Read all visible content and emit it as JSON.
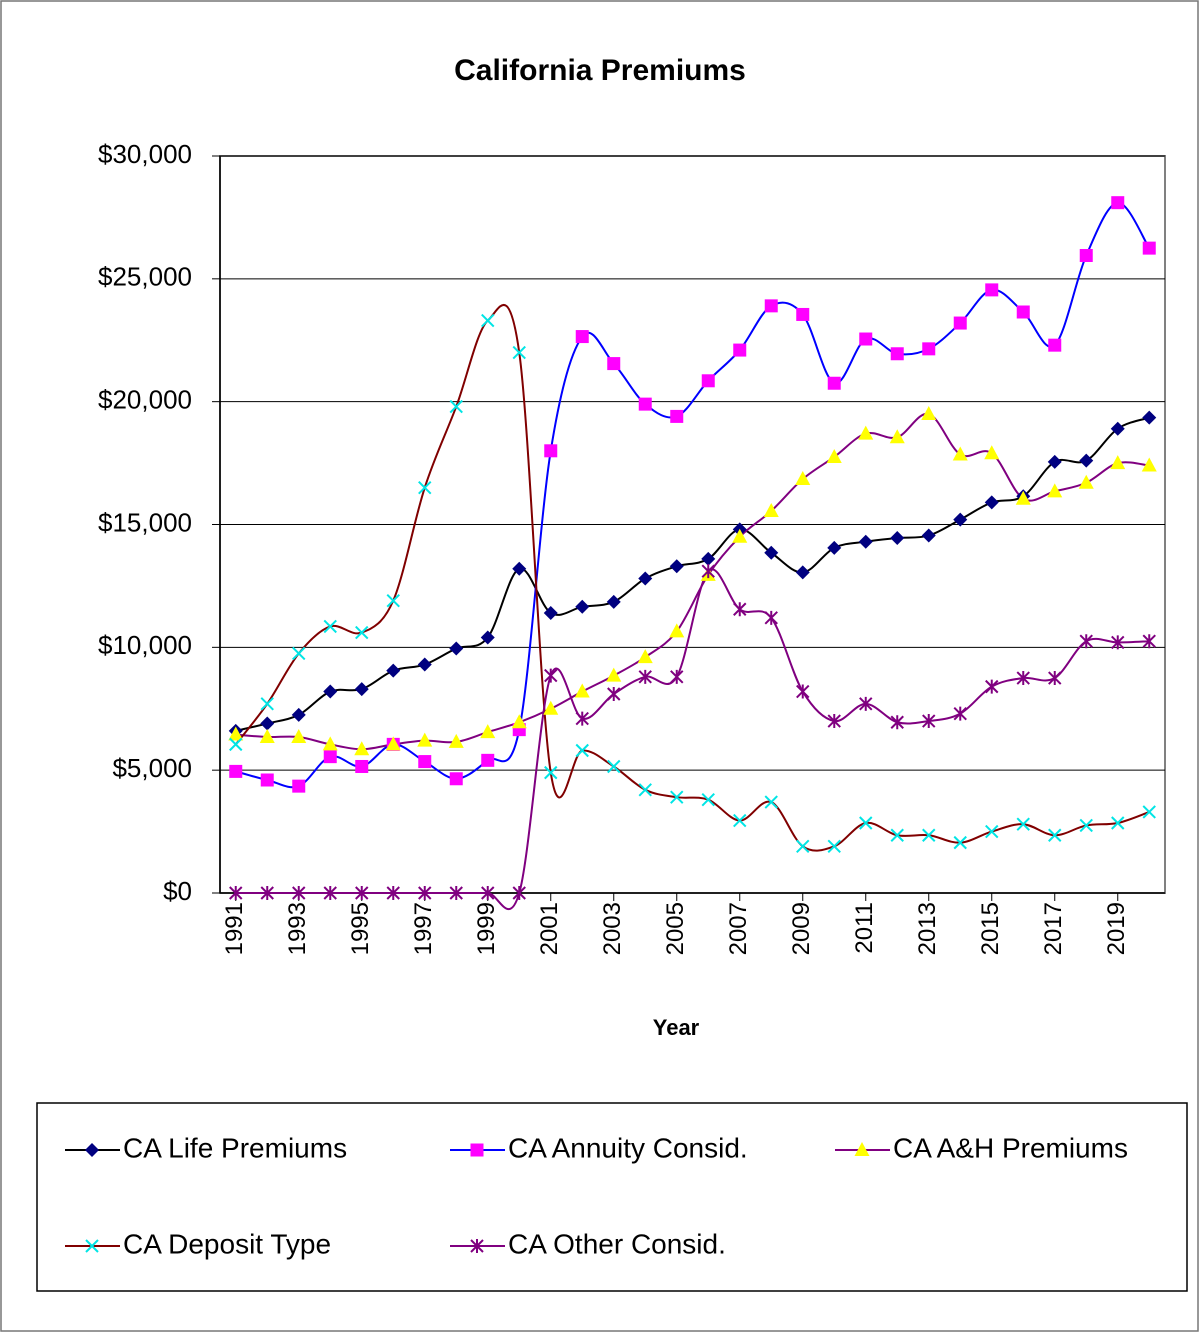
{
  "chart_data": {
    "type": "line",
    "title": "California Premiums",
    "x_label": "Year",
    "x": [
      1991,
      1992,
      1993,
      1994,
      1995,
      1996,
      1997,
      1998,
      1999,
      2000,
      2001,
      2002,
      2003,
      2004,
      2005,
      2006,
      2007,
      2008,
      2009,
      2010,
      2011,
      2012,
      2013,
      2014,
      2015,
      2016,
      2017,
      2018,
      2019,
      2020
    ],
    "xlim": [
      1990.5,
      2020.5
    ],
    "xticks": [
      1991,
      1993,
      1995,
      1997,
      1999,
      2001,
      2003,
      2005,
      2007,
      2009,
      2011,
      2013,
      2015,
      2017,
      2019
    ],
    "ylim": [
      0,
      30000
    ],
    "yticks": [
      {
        "value": 0,
        "label": "$0"
      },
      {
        "value": 5000,
        "label": "$5,000"
      },
      {
        "value": 10000,
        "label": "$10,000"
      },
      {
        "value": 15000,
        "label": "$15,000"
      },
      {
        "value": 20000,
        "label": "$20,000"
      },
      {
        "value": 25000,
        "label": "$25,000"
      },
      {
        "value": 30000,
        "label": "$30,000"
      }
    ],
    "grid": true,
    "smooth": true,
    "legend_position": "bottom",
    "series": [
      {
        "name": "CA Life Premiums",
        "color": "#000000",
        "marker_color": "#000080",
        "marker": "diamond",
        "values": [
          6600,
          6900,
          7250,
          8200,
          8300,
          9050,
          9300,
          9950,
          10400,
          13200,
          11400,
          11650,
          11850,
          12800,
          13300,
          13600,
          14800,
          13850,
          13050,
          14050,
          14300,
          14450,
          14550,
          15200,
          15900,
          16150,
          17550,
          17600,
          18900,
          19350
        ]
      },
      {
        "name": "CA Annuity Consid.",
        "color": "#0000ff",
        "marker_color": "#ff00ff",
        "marker": "square",
        "values": [
          4950,
          4600,
          4350,
          5550,
          5150,
          6050,
          5350,
          4650,
          5400,
          6650,
          18000,
          22650,
          21550,
          19900,
          19400,
          20850,
          22100,
          23900,
          23550,
          20750,
          22550,
          21950,
          22150,
          23200,
          24550,
          23650,
          22300,
          25950,
          28100,
          26250
        ]
      },
      {
        "name": "CA A&H Premiums",
        "color": "#800080",
        "marker_color": "#ffff00",
        "marker": "triangle",
        "values": [
          6450,
          6350,
          6350,
          6050,
          5850,
          6050,
          6200,
          6150,
          6550,
          6950,
          7500,
          8200,
          8850,
          9600,
          10650,
          12950,
          14500,
          15550,
          16850,
          17750,
          18700,
          18550,
          19500,
          17850,
          17900,
          16050,
          16350,
          16700,
          17500,
          17400
        ]
      },
      {
        "name": "CA Deposit Type",
        "color": "#800000",
        "marker_color": "#00e5e5",
        "marker": "x",
        "values": [
          6050,
          7700,
          9750,
          10850,
          10600,
          11900,
          16500,
          19800,
          23300,
          22000,
          4900,
          5800,
          5150,
          4200,
          3900,
          3800,
          2950,
          3700,
          1900,
          1900,
          2850,
          2350,
          2350,
          2050,
          2500,
          2800,
          2350,
          2750,
          2850,
          3300
        ]
      },
      {
        "name": "CA Other Consid.",
        "color": "#800080",
        "marker_color": "#800080",
        "marker": "star",
        "values": [
          0,
          0,
          0,
          0,
          0,
          0,
          0,
          0,
          0,
          0,
          8850,
          7100,
          8100,
          8800,
          8800,
          13100,
          11550,
          11200,
          8200,
          7000,
          7700,
          6950,
          7000,
          7300,
          8400,
          8750,
          8750,
          10250,
          10200,
          10250
        ]
      }
    ]
  }
}
